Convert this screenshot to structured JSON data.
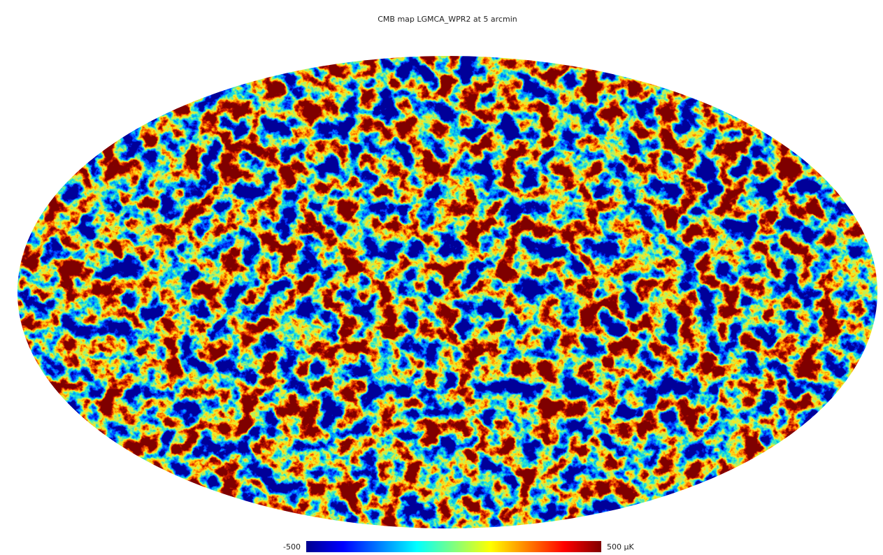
{
  "title": "CMB map LGMCA_WPR2 at 5 arcmin",
  "colorbar": {
    "min_label": "-500",
    "max_label": "500 µK"
  }
}
